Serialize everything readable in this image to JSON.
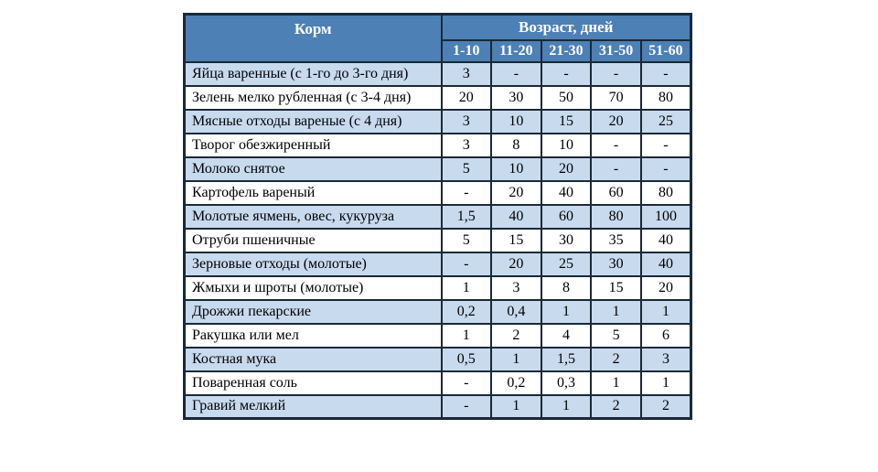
{
  "chart_data": {
    "type": "table",
    "header": {
      "feed_label": "Корм",
      "age_group_label": "Возраст, дней",
      "age_columns": [
        "1-10",
        "11-20",
        "21-30",
        "31-50",
        "51-60"
      ]
    },
    "rows": [
      {
        "label": "Яйца варенные (с 1-го до 3-го дня)",
        "values": [
          "3",
          "-",
          "-",
          "-",
          "-"
        ]
      },
      {
        "label": "Зелень мелко рубленная (с 3-4 дня)",
        "values": [
          "20",
          "30",
          "50",
          "70",
          "80"
        ]
      },
      {
        "label": "Мясные отходы вареные (с 4 дня)",
        "values": [
          "3",
          "10",
          "15",
          "20",
          "25"
        ]
      },
      {
        "label": "Творог обезжиренный",
        "values": [
          "3",
          "8",
          "10",
          "-",
          "-"
        ]
      },
      {
        "label": "Молоко снятое",
        "values": [
          "5",
          "10",
          "20",
          "-",
          "-"
        ]
      },
      {
        "label": "Картофель вареный",
        "values": [
          "-",
          "20",
          "40",
          "60",
          "80"
        ]
      },
      {
        "label": "Молотые ячмень, овес, кукуруза",
        "values": [
          "1,5",
          "40",
          "60",
          "80",
          "100"
        ]
      },
      {
        "label": "Отруби пшеничные",
        "values": [
          "5",
          "15",
          "30",
          "35",
          "40"
        ]
      },
      {
        "label": "Зерновые отходы (молотые)",
        "values": [
          "-",
          "20",
          "25",
          "30",
          "40"
        ]
      },
      {
        "label": "Жмыхи и шроты (молотые)",
        "values": [
          "1",
          "3",
          "8",
          "15",
          "20"
        ]
      },
      {
        "label": "Дрожжи пекарские",
        "values": [
          "0,2",
          "0,4",
          "1",
          "1",
          "1"
        ]
      },
      {
        "label": "Ракушка или мел",
        "values": [
          "1",
          "2",
          "4",
          "5",
          "6"
        ]
      },
      {
        "label": "Костная мука",
        "values": [
          "0,5",
          "1",
          "1,5",
          "2",
          "3"
        ]
      },
      {
        "label": "Поваренная соль",
        "values": [
          "-",
          "0,2",
          "0,3",
          "1",
          "1"
        ]
      },
      {
        "label": "Гравий мелкий",
        "values": [
          "-",
          "1",
          "1",
          "2",
          "2"
        ]
      }
    ]
  },
  "colors": {
    "header_bg": "#4d80b5",
    "band_row_bg": "#c8daee",
    "plain_row_bg": "#ffffff",
    "border": "#1a2936",
    "header_text": "#ffffff",
    "body_text": "#000000",
    "page_bg": "#ffffff"
  }
}
